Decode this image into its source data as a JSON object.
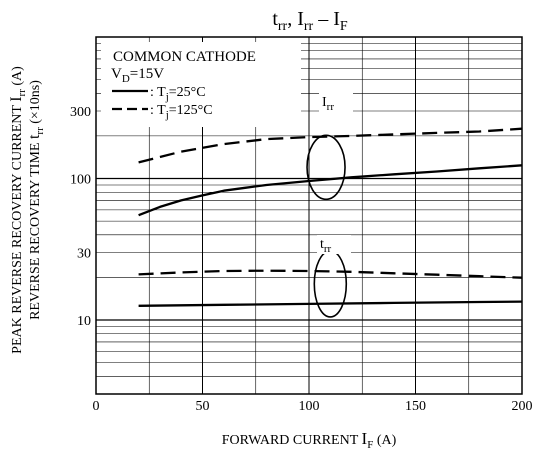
{
  "chart_data": {
    "type": "line",
    "title": {
      "base1": "t",
      "sub1": "rr",
      "mid": ", I",
      "sub2": "rr",
      "dash": " – I",
      "sub3": "F"
    },
    "xlabel": {
      "text": "FORWARD CURRENT",
      "sym": "I",
      "sub": "F",
      "unit": "(A)"
    },
    "ylabel": {
      "line1": "PEAK REVERSE RECOVERY CURRENT",
      "line1_sym": "I",
      "line1_sub": "rr",
      "line1_unit": "(A)",
      "line2": "REVERSE RECOVERY TIME",
      "line2_sym": "t",
      "line2_sub": "rr",
      "line2_unit": "(×10ns)"
    },
    "xlim": [
      0,
      200
    ],
    "ylim": [
      3,
      1000
    ],
    "yscale": "log",
    "x_ticks": [
      0,
      50,
      100,
      150,
      200
    ],
    "x_tick_labels": [
      "0",
      "50",
      "100",
      "150",
      "200"
    ],
    "y_ticks": [
      10,
      30,
      100,
      300
    ],
    "y_tick_labels": [
      "10",
      "30",
      "100",
      "300"
    ],
    "grid": true,
    "legend": {
      "position": "top-left",
      "line1": "COMMON CATHODE",
      "line2": {
        "base": "V",
        "sub": "D",
        "rest": "=15V"
      },
      "entries": [
        {
          "style": "solid",
          "prefix": ": T",
          "sub": "j",
          "rest": "=25°C"
        },
        {
          "style": "dashed",
          "prefix": ": T",
          "sub": "j",
          "rest": "=125°C"
        }
      ]
    },
    "annotations": [
      {
        "base": "I",
        "sub": "rr",
        "x": 108,
        "y": 250
      },
      {
        "base": "t",
        "sub": "rr",
        "x": 108,
        "y": 29
      }
    ],
    "series": [
      {
        "style": "dashed",
        "x": [
          20,
          40,
          60,
          80,
          100,
          120,
          140,
          160,
          180,
          200
        ],
        "values": [
          130,
          155,
          175,
          190,
          196,
          200,
          205,
          210,
          215,
          225
        ]
      },
      {
        "style": "solid",
        "x": [
          20,
          30,
          40,
          50,
          60,
          70,
          80,
          100,
          120,
          140,
          160,
          180,
          200
        ],
        "values": [
          55,
          63,
          70,
          76,
          82,
          86,
          90,
          96,
          102,
          107,
          112,
          118,
          124
        ]
      },
      {
        "style": "dashed",
        "x": [
          20,
          40,
          60,
          80,
          100,
          120,
          140,
          160,
          180,
          200
        ],
        "values": [
          21,
          21.7,
          22.2,
          22.3,
          22.2,
          21.9,
          21.4,
          20.9,
          20.4,
          19.9
        ]
      },
      {
        "style": "solid",
        "x": [
          20,
          60,
          100,
          140,
          180,
          200
        ],
        "values": [
          12.6,
          12.8,
          13.0,
          13.2,
          13.4,
          13.5
        ]
      }
    ]
  }
}
